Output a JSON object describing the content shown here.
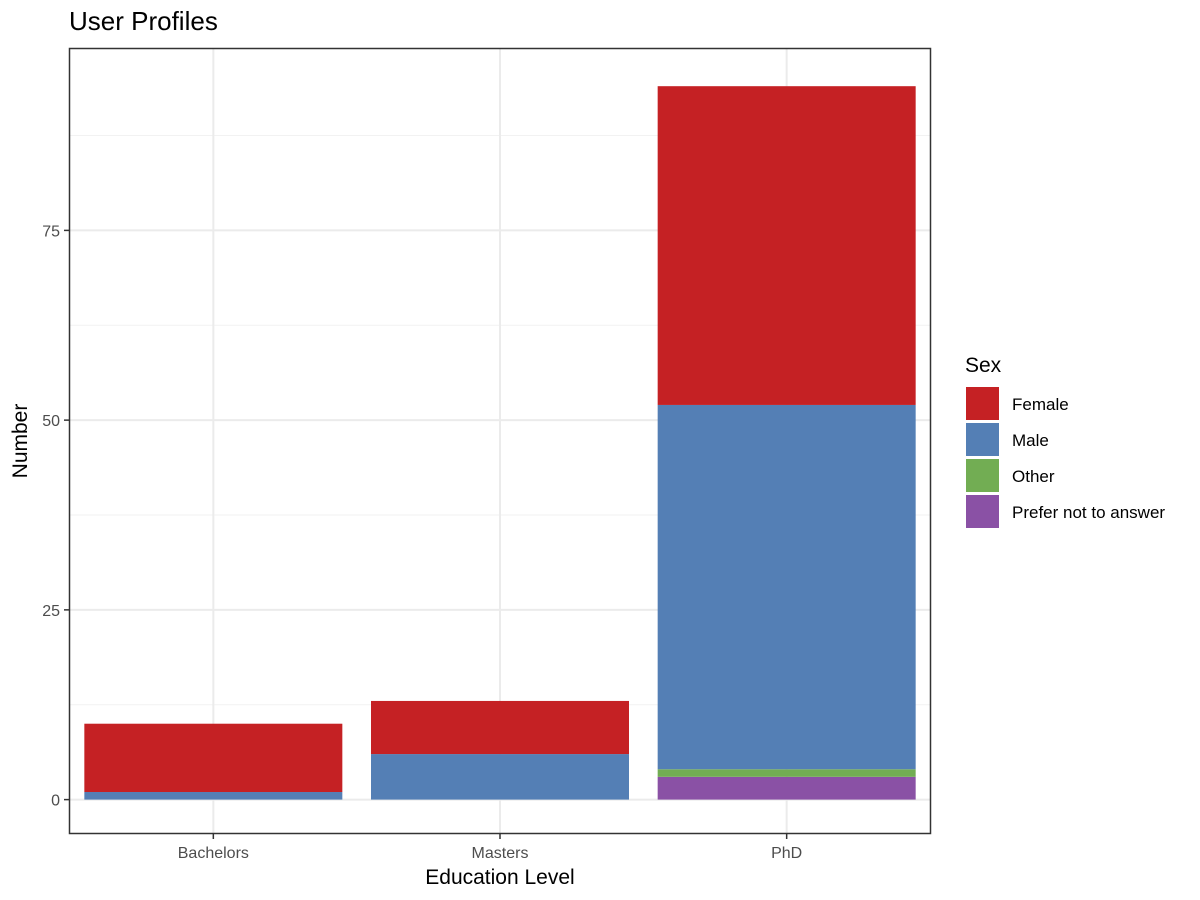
{
  "chart_data": {
    "type": "bar",
    "stacked": true,
    "title": "User Profiles",
    "xlabel": "Education Level",
    "ylabel": "Number",
    "categories": [
      "Bachelors",
      "Masters",
      "PhD"
    ],
    "ylim": [
      -4.4,
      98.9
    ],
    "yticks": [
      0,
      25,
      50,
      75
    ],
    "grid": true,
    "legend": {
      "title": "Sex",
      "position": "right"
    },
    "series": [
      {
        "name": "Prefer not to answer",
        "color": "#8A51A5",
        "values": [
          0,
          0,
          3
        ]
      },
      {
        "name": "Other",
        "color": "#72AD53",
        "values": [
          0,
          0,
          1
        ]
      },
      {
        "name": "Male",
        "color": "#547FB5",
        "values": [
          1,
          6,
          48
        ]
      },
      {
        "name": "Female",
        "color": "#C52124",
        "values": [
          9,
          7,
          42
        ]
      }
    ]
  }
}
